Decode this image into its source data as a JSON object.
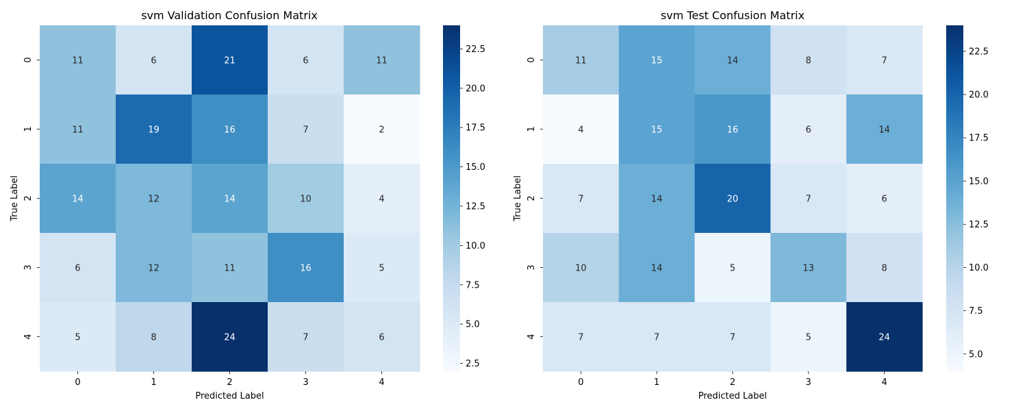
{
  "chart_data": [
    {
      "type": "heatmap",
      "title": "svm Validation Confusion Matrix",
      "xlabel": "Predicted Label",
      "ylabel": "True Label",
      "x_categories": [
        "0",
        "1",
        "2",
        "3",
        "4"
      ],
      "y_categories": [
        "0",
        "1",
        "2",
        "3",
        "4"
      ],
      "values": [
        [
          11,
          6,
          21,
          6,
          11
        ],
        [
          11,
          19,
          16,
          7,
          2
        ],
        [
          14,
          12,
          14,
          10,
          4
        ],
        [
          6,
          12,
          11,
          16,
          5
        ],
        [
          5,
          8,
          24,
          7,
          6
        ]
      ],
      "colormap": "Blues",
      "colorbar": {
        "vmin": 2,
        "vmax": 24,
        "ticks": [
          2.5,
          5.0,
          7.5,
          10.0,
          12.5,
          15.0,
          17.5,
          20.0,
          22.5
        ],
        "tick_labels": [
          "2.5",
          "5.0",
          "7.5",
          "10.0",
          "12.5",
          "15.0",
          "17.5",
          "20.0",
          "22.5"
        ]
      }
    },
    {
      "type": "heatmap",
      "title": "svm Test Confusion Matrix",
      "xlabel": "Predicted Label",
      "ylabel": "True Label",
      "x_categories": [
        "0",
        "1",
        "2",
        "3",
        "4"
      ],
      "y_categories": [
        "0",
        "1",
        "2",
        "3",
        "4"
      ],
      "values": [
        [
          11,
          15,
          14,
          8,
          7
        ],
        [
          4,
          15,
          16,
          6,
          14
        ],
        [
          7,
          14,
          20,
          7,
          6
        ],
        [
          10,
          14,
          5,
          13,
          8
        ],
        [
          7,
          7,
          7,
          5,
          24
        ]
      ],
      "colormap": "Blues",
      "colorbar": {
        "vmin": 4,
        "vmax": 24,
        "ticks": [
          5.0,
          7.5,
          10.0,
          12.5,
          15.0,
          17.5,
          20.0,
          22.5
        ],
        "tick_labels": [
          "5.0",
          "7.5",
          "10.0",
          "12.5",
          "15.0",
          "17.5",
          "20.0",
          "22.5"
        ]
      }
    }
  ]
}
